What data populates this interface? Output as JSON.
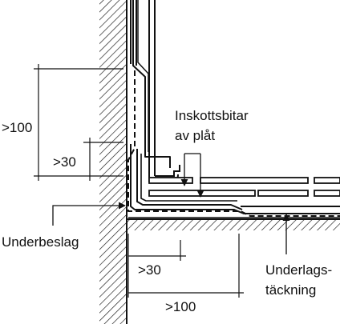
{
  "labels": {
    "dim_vertical_large": ">100",
    "dim_vertical_small": ">30",
    "dim_horizontal_small": ">30",
    "dim_horizontal_large": ">100",
    "inskottsbitar_line1": "Inskottsbitar",
    "inskottsbitar_line2": "av plåt",
    "underbeslag": "Underbeslag",
    "underlagstackning_line1": "Underlags-",
    "underlagstackning_line2": "täckning"
  },
  "colors": {
    "ink": "#111111",
    "background": "#ffffff"
  }
}
